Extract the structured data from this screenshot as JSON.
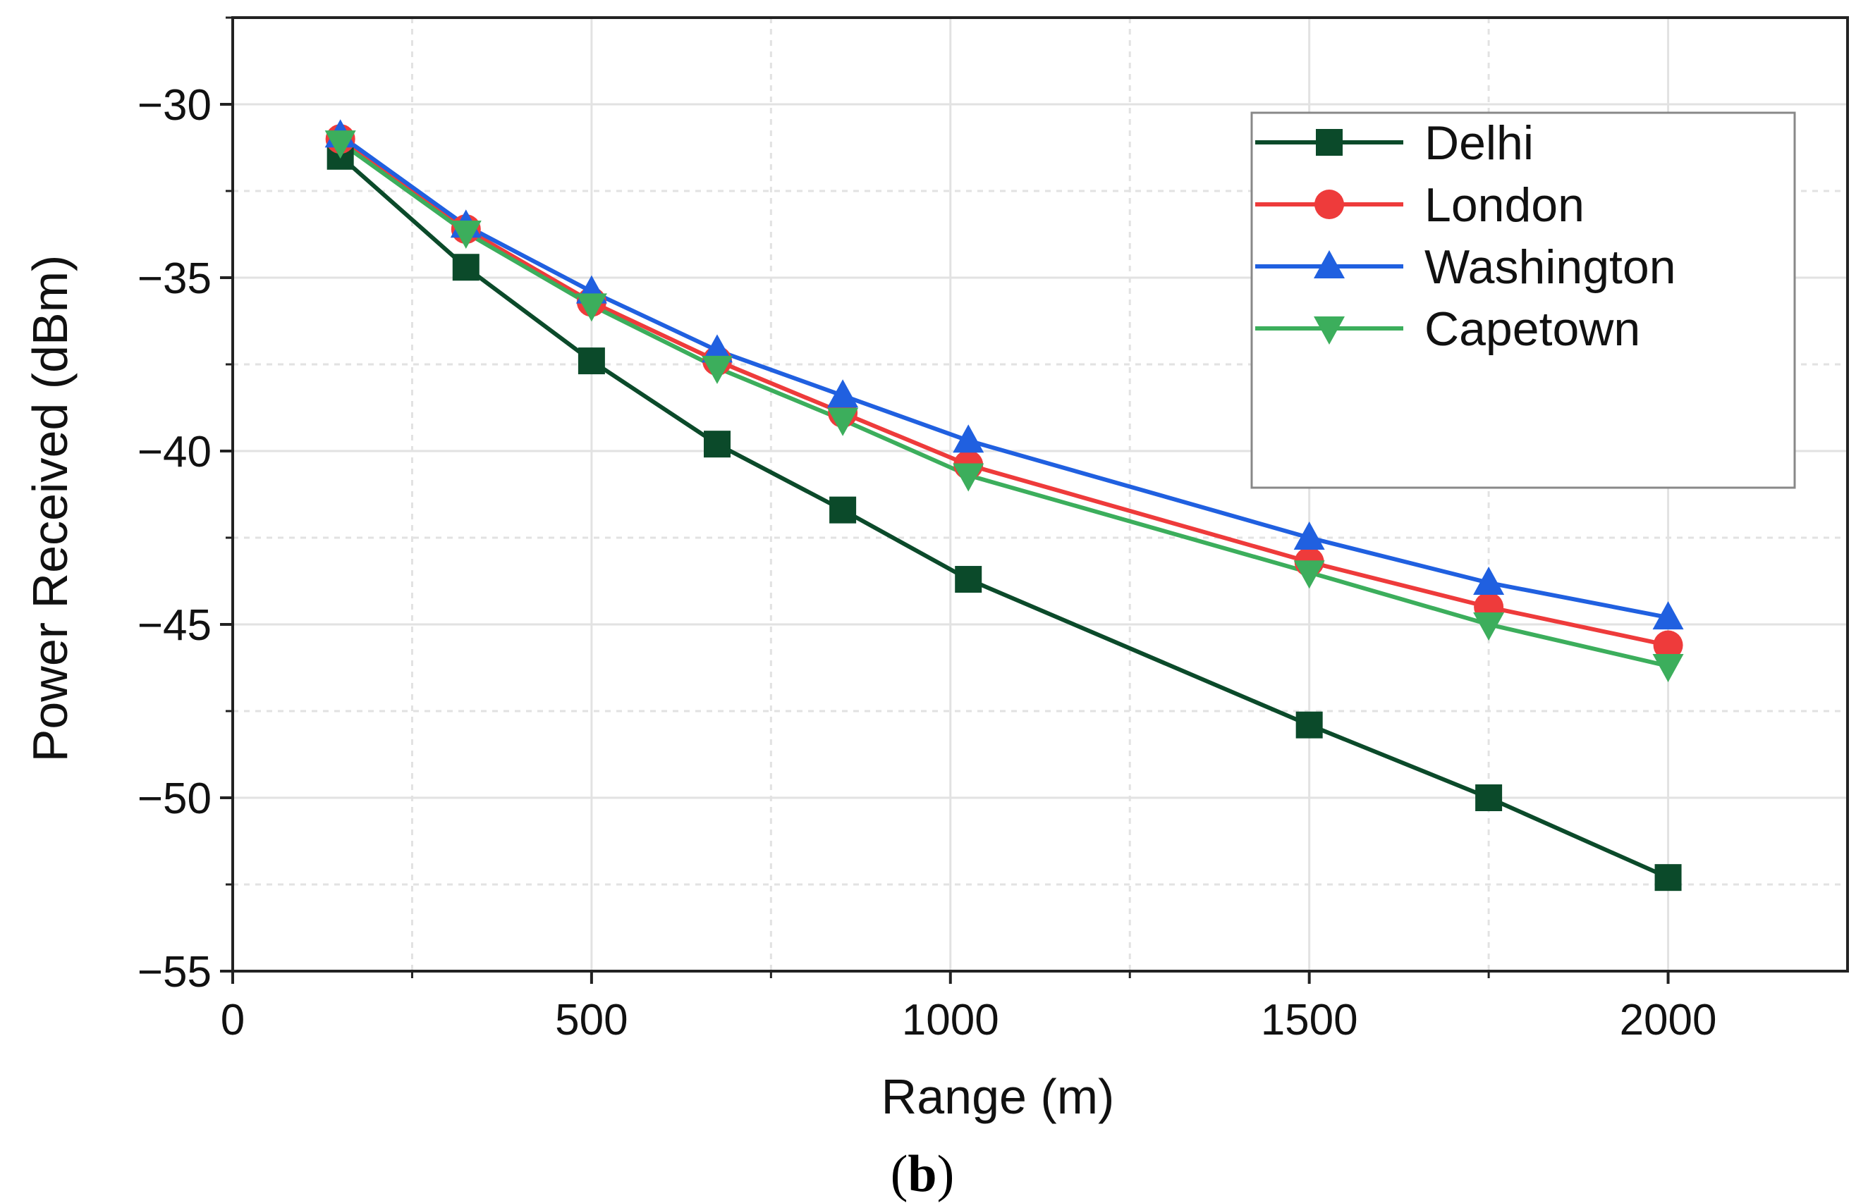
{
  "chart_data": {
    "type": "line",
    "title": "",
    "xlabel": "Range (m)",
    "ylabel": "Power Received (dBm)",
    "xlim": [
      0,
      2250
    ],
    "ylim": [
      -55,
      -27.5
    ],
    "xticks": [
      0,
      500,
      1000,
      1500,
      2000
    ],
    "yticks": [
      -30,
      -35,
      -40,
      -45,
      -50,
      -55
    ],
    "xtick_labels": [
      "0",
      "500",
      "1000",
      "1500",
      "2000"
    ],
    "ytick_labels": [
      "−30",
      "−35",
      "−40",
      "−45",
      "−50",
      "−55"
    ],
    "grid": true,
    "legend_position": "top-right",
    "x": [
      150,
      325,
      500,
      675,
      850,
      1025,
      1500,
      1750,
      2000
    ],
    "series": [
      {
        "name": "Delhi",
        "color": "#0b4a2a",
        "marker": "square",
        "values": [
          -31.5,
          -34.7,
          -37.4,
          -39.8,
          -41.7,
          -43.7,
          -47.9,
          -50.0,
          -52.3
        ]
      },
      {
        "name": "London",
        "color": "#ee3b3b",
        "marker": "circle",
        "values": [
          -31.0,
          -33.6,
          -35.7,
          -37.4,
          -38.9,
          -40.4,
          -43.2,
          -44.5,
          -45.6
        ]
      },
      {
        "name": "Washington",
        "color": "#2060e0",
        "marker": "triangle-up",
        "values": [
          -30.9,
          -33.5,
          -35.4,
          -37.1,
          -38.4,
          -39.7,
          -42.5,
          -43.8,
          -44.8
        ]
      },
      {
        "name": "Capetown",
        "color": "#3cae5c",
        "marker": "triangle-down",
        "values": [
          -31.1,
          -33.7,
          -35.8,
          -37.6,
          -39.1,
          -40.7,
          -43.5,
          -45.0,
          -46.2
        ]
      }
    ]
  },
  "caption": {
    "open": "(",
    "letter": "b",
    "close": ")"
  }
}
